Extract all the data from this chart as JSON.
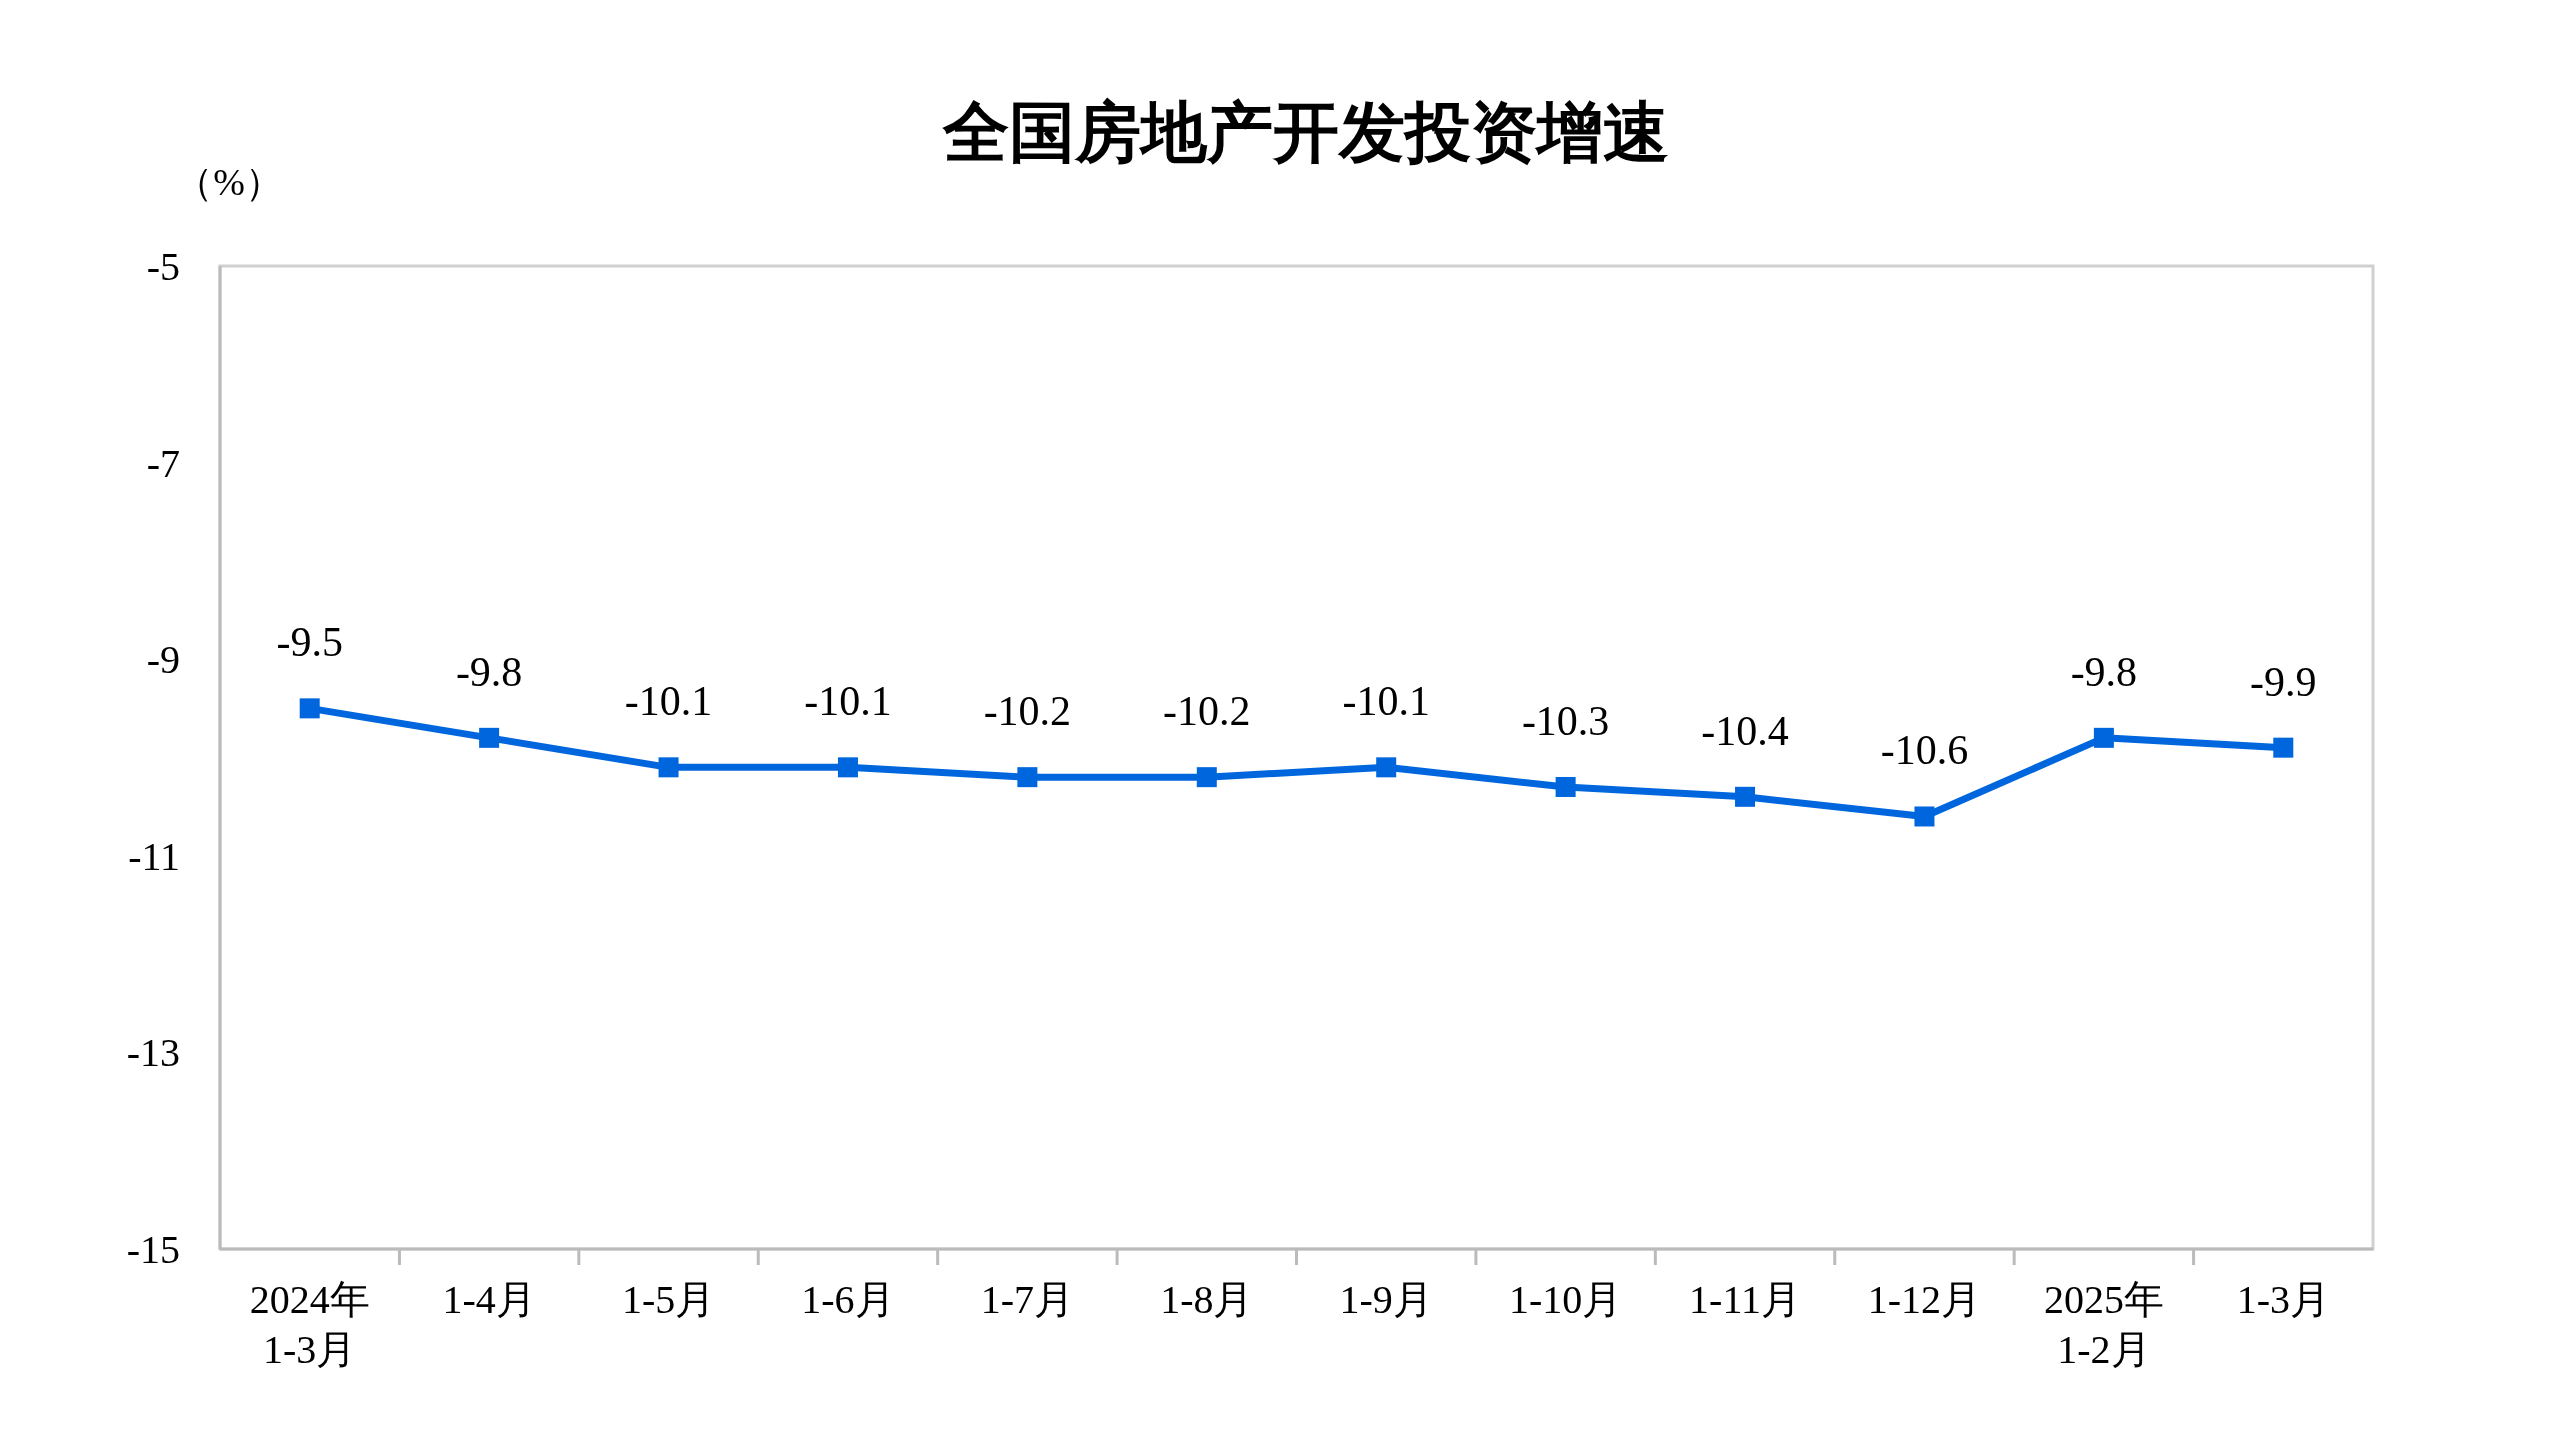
{
  "chart_data": {
    "type": "line",
    "title": "全国房地产开发投资增速",
    "ylabel": "（%）",
    "categories": [
      "2024年\n1-3月",
      "1-4月",
      "1-5月",
      "1-6月",
      "1-7月",
      "1-8月",
      "1-9月",
      "1-10月",
      "1-11月",
      "1-12月",
      "2025年\n1-2月",
      "1-3月"
    ],
    "series": [
      {
        "color": "#0066dd",
        "values": [
          -9.5,
          -9.8,
          -10.1,
          -10.1,
          -10.2,
          -10.2,
          -10.1,
          -10.3,
          -10.4,
          -10.6,
          -9.8,
          -9.9
        ]
      }
    ],
    "ylim": [
      -15,
      -5
    ],
    "yticks": [
      -5,
      -7,
      -9,
      -11,
      -13,
      -15
    ],
    "grid": false,
    "marker": "square",
    "line_style": "solid",
    "data_labels": true
  }
}
